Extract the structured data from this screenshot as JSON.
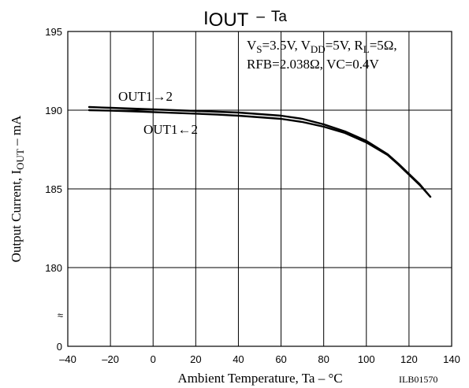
{
  "chart_data": {
    "type": "line",
    "title": {
      "symbol": "I",
      "subscript": "OUT",
      "dash": "–",
      "param": "Ta"
    },
    "conditions": {
      "line1": {
        "vs_sym": "V",
        "vs_sub": "S",
        "vs_val": "=3.5V, ",
        "vdd_sym": "V",
        "vdd_sub": "DD",
        "vdd_val": "=5V, ",
        "rl_sym": "R",
        "rl_sub": "L",
        "rl_val": "=5Ω,"
      },
      "line2": "RFB=2.038Ω, VC=0.4V"
    },
    "xlabel": "Ambient Temperature, Ta  –  °C",
    "ylabel": {
      "main": "Output Current, I",
      "subscript": "OUT",
      "tail": "  –  mA"
    },
    "xlim": [
      -40,
      140
    ],
    "ylim_display": [
      175,
      195
    ],
    "x_ticks": [
      "–40",
      "–20",
      "0",
      "20",
      "40",
      "60",
      "80",
      "100",
      "120",
      "140"
    ],
    "x_tick_values": [
      -40,
      -20,
      0,
      20,
      40,
      60,
      80,
      100,
      120,
      140
    ],
    "y_ticks": [
      {
        "value": 195,
        "label": "195"
      },
      {
        "value": 190,
        "label": "190"
      },
      {
        "value": 185,
        "label": "185"
      },
      {
        "value": 180,
        "label": "180"
      },
      {
        "value": 0,
        "label": "0"
      }
    ],
    "axis_break_symbol": "≈",
    "grid": true,
    "series": [
      {
        "name": "OUT1→2",
        "x": [
          -30,
          -20,
          -10,
          0,
          10,
          20,
          30,
          40,
          50,
          60,
          70,
          80,
          90,
          100,
          110,
          115,
          120,
          125,
          130
        ],
        "y": [
          190.2,
          190.15,
          190.1,
          190.05,
          190.0,
          189.95,
          189.9,
          189.85,
          189.75,
          189.65,
          189.45,
          189.1,
          188.65,
          188.05,
          187.2,
          186.6,
          185.95,
          185.3,
          184.5
        ]
      },
      {
        "name": "OUT1←2",
        "x": [
          -30,
          -20,
          -10,
          0,
          10,
          20,
          30,
          40,
          50,
          60,
          70,
          80,
          90,
          100,
          110,
          115,
          120,
          125,
          130
        ],
        "y": [
          190.0,
          189.97,
          189.93,
          189.88,
          189.83,
          189.78,
          189.72,
          189.65,
          189.55,
          189.45,
          189.25,
          188.95,
          188.55,
          187.95,
          187.15,
          186.55,
          185.9,
          185.25,
          184.5
        ]
      }
    ],
    "figure_id": "ILB01570"
  }
}
